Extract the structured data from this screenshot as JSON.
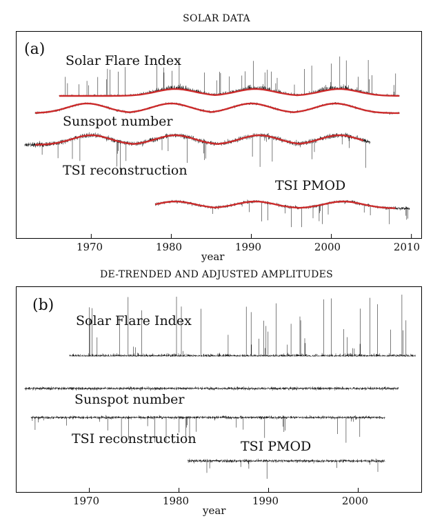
{
  "figure": {
    "title_top": "SOLAR DATA",
    "title_bottom": "DE-TRENDED AND ADJUSTED AMPLITUDES"
  },
  "chart_data": [
    {
      "type": "line",
      "panel_label": "(a)",
      "title": "SOLAR DATA",
      "xlabel": "year",
      "ylabel": "",
      "xlim": [
        1961.7,
        2010.2
      ],
      "xticks": [
        1970,
        1980,
        1990,
        2000,
        2010
      ],
      "xtick_labels": [
        "1970",
        "1980",
        "1990",
        "2000",
        "2010"
      ],
      "y_units": "arbitrary (stacked, offset series)",
      "series": [
        {
          "name": "Solar Flare Index",
          "x_range": [
            1966.0,
            2008.5
          ],
          "shape": "spiky",
          "cycles_peak_years": [
            1980.5,
            1990.5,
            2001.0
          ],
          "smooth_fit": "red",
          "fit_x_range": [
            1966.0,
            2008.5
          ]
        },
        {
          "name": "Sunspot number",
          "x_range": [
            1963.0,
            2008.5
          ],
          "shape": "noisy",
          "cycles_peak_years": [
            1969.5,
            1980.0,
            1990.0,
            2000.5
          ],
          "smooth_fit": "red",
          "fit_x_range": [
            1963.0,
            2008.5
          ]
        },
        {
          "name": "TSI reconstruction",
          "x_range": [
            1961.7,
            2004.9
          ],
          "shape": "noisy-with-dips",
          "cycles_peak_years": [
            1970.0,
            1980.5,
            1991.0,
            2001.0
          ],
          "smooth_fit": "red",
          "fit_x_range": [
            1963.0,
            2004.0
          ]
        },
        {
          "name": "TSI PMOD",
          "x_range": [
            1978.0,
            2009.8
          ],
          "shape": "noisy-with-dips",
          "cycles_peak_years": [
            1980.5,
            1990.5,
            2001.5
          ],
          "smooth_fit": "red",
          "fit_x_range": [
            1978.0,
            2008.0
          ]
        }
      ]
    },
    {
      "type": "line",
      "panel_label": "(b)",
      "title": "DE-TRENDED AND ADJUSTED AMPLITUDES",
      "xlabel": "year",
      "ylabel": "",
      "xlim": [
        1962.8,
        2006.5
      ],
      "xticks": [
        1970,
        1980,
        1990,
        2000
      ],
      "xtick_labels": [
        "1970",
        "1980",
        "1990",
        "2000"
      ],
      "y_units": "arbitrary (de-trended, offset series)",
      "series": [
        {
          "name": "Solar Flare Index",
          "x_range": [
            1967.8,
            2006.4
          ],
          "shape": "spiky"
        },
        {
          "name": "Sunspot number",
          "x_range": [
            1962.8,
            2004.5
          ],
          "shape": "noisy"
        },
        {
          "name": "TSI reconstruction",
          "x_range": [
            1963.5,
            2003.0
          ],
          "shape": "noisy-with-dips"
        },
        {
          "name": "TSI PMOD",
          "x_range": [
            1981.0,
            2003.0
          ],
          "shape": "noisy-with-dips"
        }
      ]
    }
  ],
  "colors": {
    "signal": "#111111",
    "fit": "#cc2a2a",
    "frame": "#000000"
  }
}
